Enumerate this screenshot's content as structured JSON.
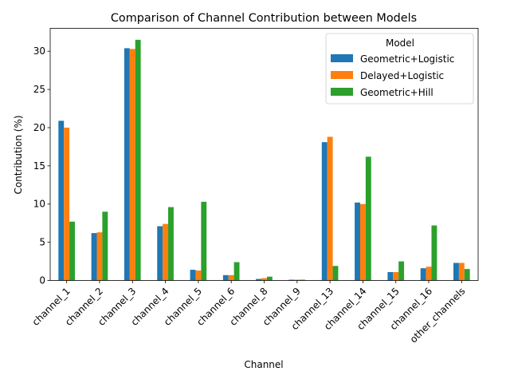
{
  "chart_data": {
    "type": "bar",
    "title": "Comparison of Channel Contribution between Models",
    "xlabel": "Channel",
    "ylabel": "Contribution (%)",
    "ylim": [
      0,
      33
    ],
    "yticks": [
      0,
      5,
      10,
      15,
      20,
      25,
      30
    ],
    "grid": false,
    "legend_title": "Model",
    "legend_position": "top-right",
    "categories": [
      "channel_1",
      "channel_2",
      "channel_3",
      "channel_4",
      "channel_5",
      "channel_6",
      "channel_8",
      "channel_9",
      "channel_13",
      "channel_14",
      "channel_15",
      "channel_16",
      "other_channels"
    ],
    "series": [
      {
        "name": "Geometric+Logistic",
        "color": "#1f77b4",
        "values": [
          20.9,
          6.2,
          30.4,
          7.1,
          1.4,
          0.7,
          0.2,
          0.1,
          18.1,
          10.2,
          1.1,
          1.6,
          2.3
        ]
      },
      {
        "name": "Delayed+Logistic",
        "color": "#ff7f0e",
        "values": [
          20.0,
          6.3,
          30.3,
          7.4,
          1.3,
          0.7,
          0.3,
          0.1,
          18.8,
          10.0,
          1.1,
          1.8,
          2.3
        ]
      },
      {
        "name": "Geometric+Hill",
        "color": "#2ca02c",
        "values": [
          7.7,
          9.0,
          31.5,
          9.6,
          10.3,
          2.4,
          0.5,
          0.1,
          1.9,
          16.2,
          2.5,
          7.2,
          1.5
        ]
      }
    ]
  }
}
